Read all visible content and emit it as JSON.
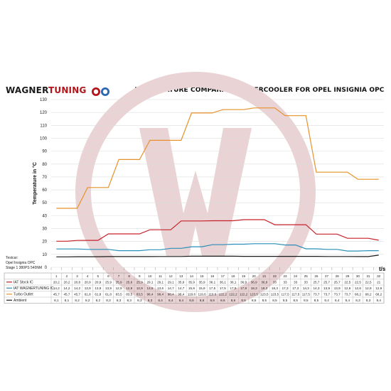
{
  "brand": {
    "part1": "WAGNER",
    "part2": "TUNING"
  },
  "chart_data": {
    "type": "line",
    "title": "TEMPERATURE COMPARISON INTERCOOLER FOR OPEL INSIGNIA OPC",
    "xlabel": "t/s",
    "ylabel": "Temperature in °C",
    "ylim": [
      0,
      130
    ],
    "yticks": [
      0,
      10,
      20,
      30,
      40,
      50,
      60,
      70,
      80,
      90,
      100,
      110,
      120,
      130
    ],
    "x": [
      1,
      2,
      3,
      4,
      5,
      6,
      7,
      8,
      9,
      10,
      11,
      12,
      13,
      14,
      15,
      16,
      17,
      18,
      19,
      20,
      21,
      22,
      23,
      24,
      25,
      26,
      27,
      28,
      29,
      30,
      31,
      32
    ],
    "grid": true,
    "legend": "table-below",
    "testcar_lines": [
      "Testcar:",
      "Opel Insignia OPC",
      "Stage 1 380PS 540NM"
    ],
    "series": [
      {
        "name": "IAT Stock IC",
        "color": "#c8202a",
        "values": [
          20.2,
          20.2,
          20.8,
          20.9,
          20.9,
          25.9,
          25.9,
          25.9,
          25.9,
          29.1,
          29.1,
          29.1,
          35.9,
          35.9,
          35.9,
          36.1,
          36.1,
          36.1,
          36.9,
          36.9,
          36.9,
          33,
          33,
          33,
          33,
          25.7,
          25.7,
          25.7,
          22.5,
          22.5,
          22.5,
          21
        ],
        "labels": [
          "20,2",
          "20,2",
          "20,8",
          "20,9",
          "20,9",
          "25,9",
          "25,9",
          "25,9",
          "25,9",
          "29,1",
          "29,1",
          "29,1",
          "35,9",
          "35,9",
          "35,9",
          "36,1",
          "36,1",
          "36,1",
          "36,9",
          "36,9",
          "36,9",
          "33",
          "33",
          "33",
          "33",
          "25,7",
          "25,7",
          "25,7",
          "22,5",
          "22,5",
          "22,5",
          "21"
        ]
      },
      {
        "name": "IAT WAGNERTUNING IC",
        "color": "#2a8fb8",
        "values": [
          14.2,
          14.2,
          14.2,
          13.9,
          13.9,
          13.9,
          12.9,
          12.9,
          12.9,
          13.6,
          13.6,
          14.7,
          14.7,
          15.9,
          15.9,
          17.5,
          17.5,
          17.9,
          17.9,
          18.3,
          18.3,
          18.3,
          17.3,
          17.3,
          14.3,
          14.3,
          13.9,
          13.9,
          12.6,
          12.6,
          12.9,
          12.9
        ],
        "labels": [
          "14,2",
          "14,2",
          "14,2",
          "13,9",
          "13,9",
          "13,9",
          "12,9",
          "12,9",
          "12,9",
          "13,6",
          "13,6",
          "14,7",
          "14,7",
          "15,9",
          "15,9",
          "17,5",
          "17,5",
          "17,9",
          "17,9",
          "18,3",
          "18,3",
          "18,3",
          "17,3",
          "17,3",
          "14,3",
          "14,3",
          "13,9",
          "13,9",
          "12,6",
          "12,6",
          "12,9",
          "12,9"
        ]
      },
      {
        "name": "Turbo Outlet",
        "color": "#e8912a",
        "values": [
          45.7,
          45.7,
          45.7,
          61.8,
          61.8,
          61.8,
          83.5,
          83.5,
          83.5,
          98.4,
          98.4,
          98.4,
          98.4,
          119.6,
          119.6,
          119.6,
          122.2,
          122.2,
          122.2,
          123.5,
          123.5,
          123.5,
          117.5,
          117.5,
          117.5,
          73.7,
          73.7,
          73.7,
          73.7,
          68.2,
          68.2,
          68.2
        ],
        "labels": [
          "45,7",
          "45,7",
          "45,7",
          "61,8",
          "61,8",
          "61,8",
          "83,5",
          "83,5",
          "83,5",
          "98,4",
          "98,4",
          "98,4",
          "98,4",
          "119,6",
          "119,6",
          "119,6",
          "122,2",
          "122,2",
          "122,2",
          "123,5",
          "123,5",
          "123,5",
          "117,5",
          "117,5",
          "117,5",
          "73,7",
          "73,7",
          "73,7",
          "73,7",
          "68,2",
          "68,2",
          "68,2"
        ]
      },
      {
        "name": "Ambient",
        "color": "#1a1a1a",
        "values": [
          8.1,
          8.1,
          8.2,
          8.2,
          8.2,
          8.3,
          8.3,
          8.3,
          8.3,
          8.3,
          8.4,
          8.4,
          8.4,
          8.6,
          8.6,
          8.6,
          8.6,
          8.6,
          8.5,
          8.5,
          8.5,
          8.5,
          8.5,
          8.5,
          8.5,
          8.5,
          8.4,
          8.4,
          8.4,
          8.3,
          8.3,
          9.4
        ],
        "labels": [
          "8,1",
          "8,1",
          "8,2",
          "8,2",
          "8,2",
          "8,3",
          "8,3",
          "8,3",
          "8,3",
          "8,3",
          "8,4",
          "8,4",
          "8,4",
          "8,6",
          "8,6",
          "8,6",
          "8,6",
          "8,6",
          "8,5",
          "8,5",
          "8,5",
          "8,5",
          "8,5",
          "8,5",
          "8,5",
          "8,5",
          "8,4",
          "8,4",
          "8,4",
          "8,3",
          "8,3",
          "9,4"
        ]
      }
    ]
  },
  "colors": {
    "brand_red": "#b3151b",
    "watermark": "#e9d3d4",
    "grid": "#dcdcdc"
  }
}
